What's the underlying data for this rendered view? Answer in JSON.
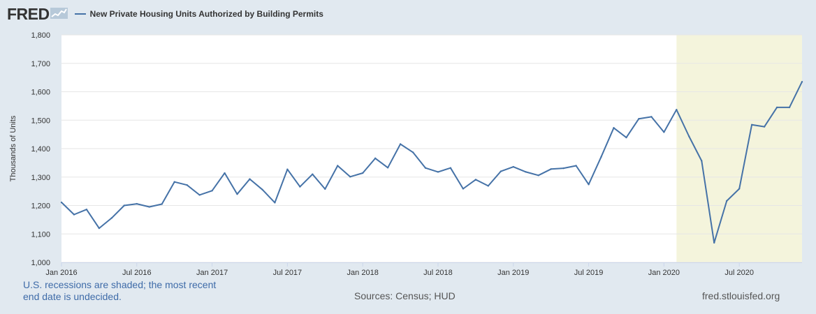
{
  "header": {
    "logo_text": "FRED",
    "logo_icon": "chart-trend-icon",
    "series_legend": "New Private Housing Units Authorized by Building Permits"
  },
  "footer": {
    "recession_note": "U.S. recessions are shaded; the most recent end date is undecided.",
    "sources": "Sources: Census; HUD",
    "url": "fred.stlouisfed.org"
  },
  "colors": {
    "line": "#4572a7",
    "recession": "#f4f4dc",
    "background": "#e1e9f0",
    "plot": "#ffffff",
    "grid": "#e6e6e6"
  },
  "chart_data": {
    "type": "line",
    "title": "New Private Housing Units Authorized by Building Permits",
    "ylabel": "Thousands of Units",
    "xlabel": "",
    "x_start": "2016-01",
    "x_end": "2020-12",
    "ylim": [
      1000,
      1800
    ],
    "y_ticks": [
      1000,
      1100,
      1200,
      1300,
      1400,
      1500,
      1600,
      1700,
      1800
    ],
    "y_tick_labels": [
      "1,000",
      "1,100",
      "1,200",
      "1,300",
      "1,400",
      "1,500",
      "1,600",
      "1,700",
      "1,800"
    ],
    "x_ticks": [
      {
        "date": "2016-01",
        "label": "Jan 2016"
      },
      {
        "date": "2016-07",
        "label": "Jul 2016"
      },
      {
        "date": "2017-01",
        "label": "Jan 2017"
      },
      {
        "date": "2017-07",
        "label": "Jul 2017"
      },
      {
        "date": "2018-01",
        "label": "Jan 2018"
      },
      {
        "date": "2018-07",
        "label": "Jul 2018"
      },
      {
        "date": "2019-01",
        "label": "Jan 2019"
      },
      {
        "date": "2019-07",
        "label": "Jul 2019"
      },
      {
        "date": "2020-01",
        "label": "Jan 2020"
      },
      {
        "date": "2020-07",
        "label": "Jul 2020"
      }
    ],
    "recession": {
      "start": "2020-02",
      "end": "2020-12"
    },
    "grid": true,
    "legend_position": "top-left",
    "series": [
      {
        "name": "New Private Housing Units Authorized by Building Permits",
        "x": [
          "2016-01",
          "2016-02",
          "2016-03",
          "2016-04",
          "2016-05",
          "2016-06",
          "2016-07",
          "2016-08",
          "2016-09",
          "2016-10",
          "2016-11",
          "2016-12",
          "2017-01",
          "2017-02",
          "2017-03",
          "2017-04",
          "2017-05",
          "2017-06",
          "2017-07",
          "2017-08",
          "2017-09",
          "2017-10",
          "2017-11",
          "2017-12",
          "2018-01",
          "2018-02",
          "2018-03",
          "2018-04",
          "2018-05",
          "2018-06",
          "2018-07",
          "2018-08",
          "2018-09",
          "2018-10",
          "2018-11",
          "2018-12",
          "2019-01",
          "2019-02",
          "2019-03",
          "2019-04",
          "2019-05",
          "2019-06",
          "2019-07",
          "2019-08",
          "2019-09",
          "2019-10",
          "2019-11",
          "2019-12",
          "2020-01",
          "2020-02",
          "2020-03",
          "2020-04",
          "2020-05",
          "2020-06",
          "2020-07",
          "2020-08",
          "2020-09",
          "2020-10",
          "2020-11",
          "2020-12"
        ],
        "values": [
          1211,
          1168,
          1186,
          1120,
          1156,
          1200,
          1206,
          1195,
          1205,
          1283,
          1272,
          1237,
          1252,
          1314,
          1240,
          1293,
          1256,
          1210,
          1327,
          1266,
          1310,
          1258,
          1340,
          1301,
          1314,
          1366,
          1333,
          1416,
          1387,
          1332,
          1318,
          1332,
          1259,
          1291,
          1269,
          1320,
          1336,
          1318,
          1306,
          1328,
          1331,
          1340,
          1274,
          1371,
          1473,
          1439,
          1505,
          1512,
          1458,
          1537,
          1443,
          1357,
          1069,
          1216,
          1259,
          1484,
          1477,
          1545,
          1545,
          1635
        ]
      }
    ]
  }
}
